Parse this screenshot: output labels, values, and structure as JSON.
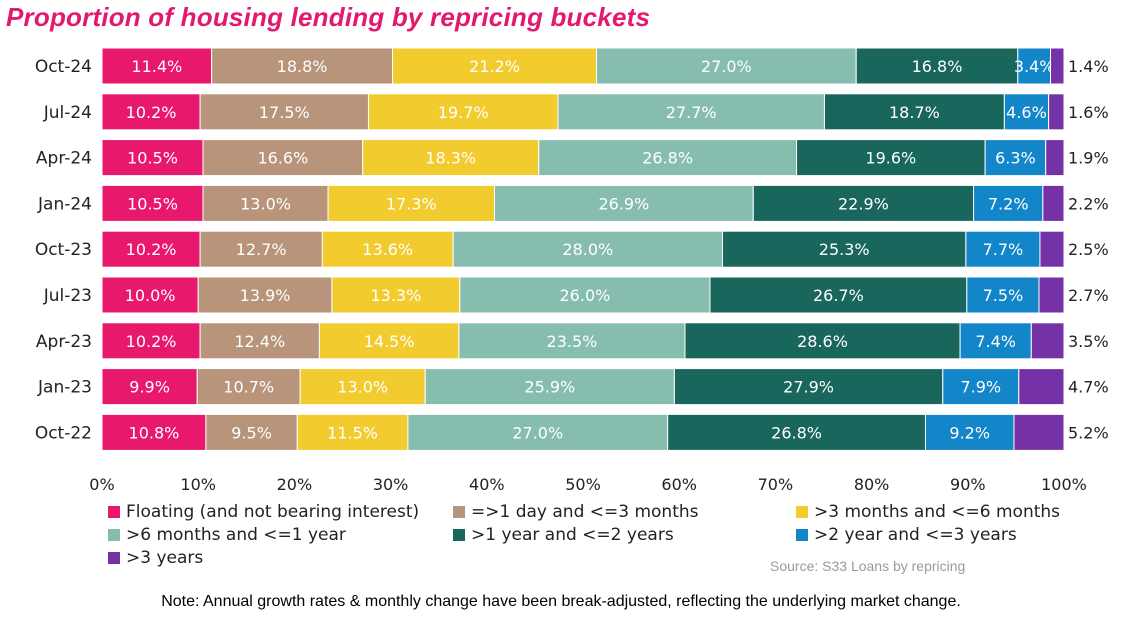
{
  "chart_data": {
    "type": "bar",
    "orientation": "horizontal",
    "stacked": true,
    "title": "Proportion of housing lending by repricing buckets",
    "categories": [
      "Oct-24",
      "Jul-24",
      "Apr-24",
      "Jan-24",
      "Oct-23",
      "Jul-23",
      "Apr-23",
      "Jan-23",
      "Oct-22"
    ],
    "series": [
      {
        "name": "Floating (and not bearing interest)",
        "color": "#E8196D",
        "values": [
          11.4,
          10.2,
          10.5,
          10.5,
          10.2,
          10.0,
          10.2,
          9.9,
          10.8
        ]
      },
      {
        "name": "=>1 day and <=3 months",
        "color": "#B8957A",
        "values": [
          18.8,
          17.5,
          16.6,
          13.0,
          12.7,
          13.9,
          12.4,
          10.7,
          9.5
        ]
      },
      {
        "name": ">3 months and <=6 months",
        "color": "#F2CB2E",
        "values": [
          21.2,
          19.7,
          18.3,
          17.3,
          13.6,
          13.3,
          14.5,
          13.0,
          11.5
        ]
      },
      {
        "name": ">6 months and <=1 year",
        "color": "#86BDAF",
        "values": [
          27.0,
          27.7,
          26.8,
          26.9,
          28.0,
          26.0,
          23.5,
          25.9,
          27.0
        ]
      },
      {
        "name": ">1 year and <=2 years",
        "color": "#19665C",
        "values": [
          16.8,
          18.7,
          19.6,
          22.9,
          25.3,
          26.7,
          28.6,
          27.9,
          26.8
        ]
      },
      {
        "name": ">2 year and <=3 years",
        "color": "#1385C9",
        "values": [
          3.4,
          4.6,
          6.3,
          7.2,
          7.7,
          7.5,
          7.4,
          7.9,
          9.2
        ]
      },
      {
        "name": ">3 years",
        "color": "#7532A7",
        "values": [
          1.4,
          1.6,
          1.9,
          2.2,
          2.5,
          2.7,
          3.5,
          4.7,
          5.2
        ]
      }
    ],
    "xlim": [
      0,
      100
    ],
    "xticks": [
      "0%",
      "10%",
      "20%",
      "30%",
      "40%",
      "50%",
      "60%",
      "70%",
      "80%",
      "90%",
      "100%"
    ],
    "grid": false,
    "legend_position": "bottom"
  },
  "source": "Source: S33 Loans by repricing",
  "note": "Note: Annual growth rates & monthly change have been break-adjusted, reflecting the underlying market change."
}
